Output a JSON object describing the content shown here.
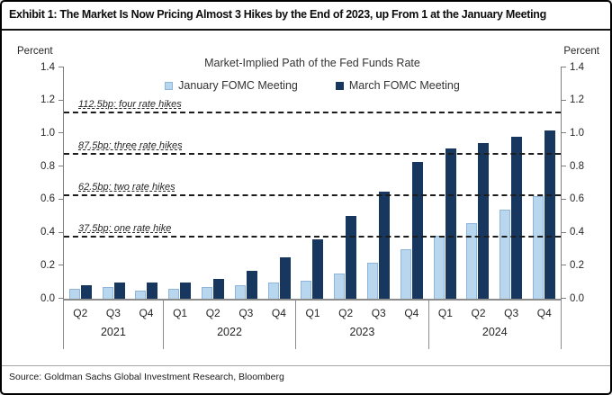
{
  "header": {
    "title": "Exhibit 1: The Market Is Now Pricing Almost 3 Hikes by the End of 2023, up From 1 at the January Meeting"
  },
  "axis": {
    "left_unit": "Percent",
    "right_unit": "Percent"
  },
  "chart_data": {
    "type": "bar",
    "title": "Market-Implied Path of the Fed Funds Rate",
    "ylabel": "Percent",
    "ylim": [
      0,
      1.4
    ],
    "yticks": [
      "0.0",
      "0.2",
      "0.4",
      "0.6",
      "0.8",
      "1.0",
      "1.2",
      "1.4"
    ],
    "grid": "dashed-reference-lines-only",
    "legend_position": "top",
    "categories": [
      "Q2",
      "Q3",
      "Q4",
      "Q1",
      "Q2",
      "Q3",
      "Q4",
      "Q1",
      "Q2",
      "Q3",
      "Q4",
      "Q1",
      "Q2",
      "Q3",
      "Q4"
    ],
    "year_groups": [
      {
        "year": "2021",
        "quarters": [
          "Q2",
          "Q3",
          "Q4"
        ]
      },
      {
        "year": "2022",
        "quarters": [
          "Q1",
          "Q2",
          "Q3",
          "Q4"
        ]
      },
      {
        "year": "2023",
        "quarters": [
          "Q1",
          "Q2",
          "Q3",
          "Q4"
        ]
      },
      {
        "year": "2024",
        "quarters": [
          "Q1",
          "Q2",
          "Q3",
          "Q4"
        ]
      }
    ],
    "series": [
      {
        "name": "January FOMC Meeting",
        "color": "#b8d6ee",
        "values": [
          0.06,
          0.07,
          0.05,
          0.06,
          0.07,
          0.08,
          0.1,
          0.11,
          0.15,
          0.22,
          0.3,
          0.38,
          0.46,
          0.54,
          0.62
        ]
      },
      {
        "name": "March FOMC Meeting",
        "color": "#17375e",
        "values": [
          0.08,
          0.1,
          0.1,
          0.1,
          0.12,
          0.17,
          0.25,
          0.36,
          0.5,
          0.65,
          0.83,
          0.91,
          0.94,
          0.98,
          1.02
        ]
      }
    ],
    "reference_lines": [
      {
        "value": 1.125,
        "label": "112.5bp: four rate hikes"
      },
      {
        "value": 0.875,
        "label": "87.5bp: three rate hikes"
      },
      {
        "value": 0.625,
        "label": "62.5bp: two rate hikes"
      },
      {
        "value": 0.375,
        "label": "37.5bp: one rate hike"
      }
    ]
  },
  "footer": {
    "source": "Source: Goldman Sachs Global Investment Research, Bloomberg"
  }
}
